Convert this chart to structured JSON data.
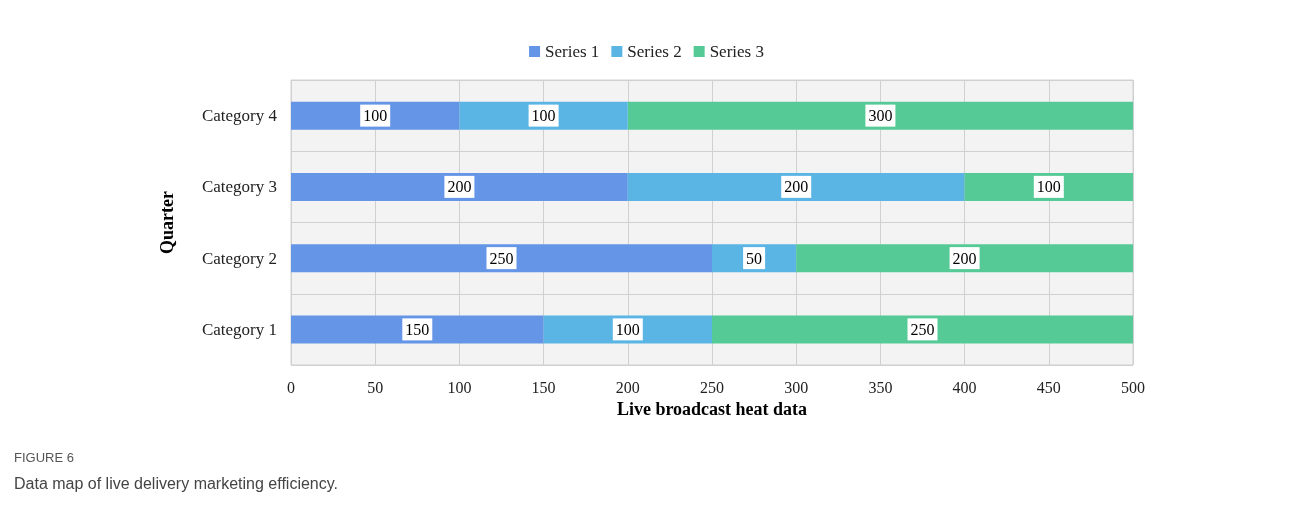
{
  "chart_data": {
    "type": "bar",
    "orientation": "horizontal",
    "stacked": true,
    "xlabel": "Live broadcast heat data",
    "ylabel": "Quarter",
    "categories": [
      "Category 4",
      "Category 3",
      "Category 2",
      "Category 1"
    ],
    "series": [
      {
        "name": "Series 1",
        "color": "#6495e6",
        "values": [
          100,
          200,
          250,
          150
        ]
      },
      {
        "name": "Series 2",
        "color": "#5ab5e4",
        "values": [
          100,
          200,
          50,
          100
        ]
      },
      {
        "name": "Series 3",
        "color": "#56ca96",
        "values": [
          300,
          100,
          200,
          250
        ]
      }
    ],
    "xlim": [
      0,
      500
    ],
    "xticks": [
      0,
      50,
      100,
      150,
      200,
      250,
      300,
      350,
      400,
      450,
      500
    ],
    "grid": true,
    "legend": "top",
    "data_labels": true,
    "annotations": [
      "FIGURE 6",
      "Data map of live delivery marketing efficiency."
    ]
  }
}
